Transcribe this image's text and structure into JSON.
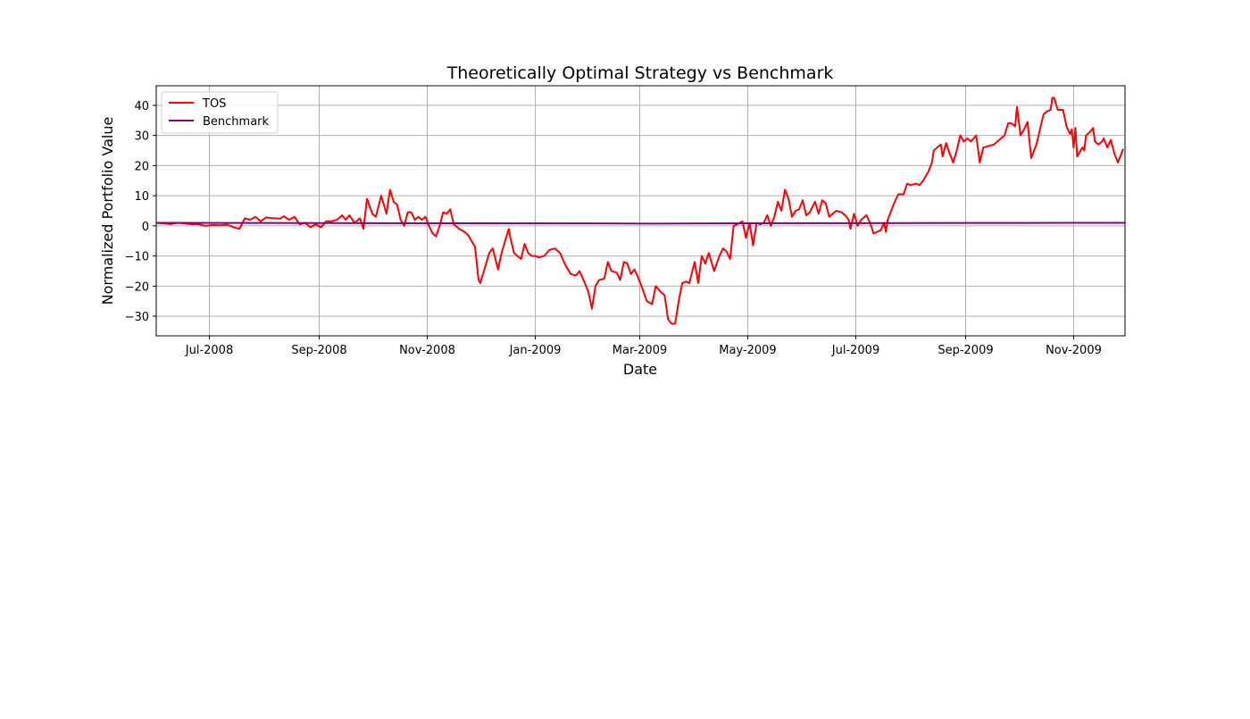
{
  "chart_data": {
    "type": "line",
    "title": "Theoretically Optimal Strategy vs Benchmark",
    "xlabel": "Date",
    "ylabel": "Normalized Portfolio Value",
    "x_range": [
      "2008-06-01",
      "2009-11-30"
    ],
    "ylim": [
      -36.5,
      46.5
    ],
    "x_ticks": [
      {
        "date": "2008-07-01",
        "label": "Jul-2008"
      },
      {
        "date": "2008-09-01",
        "label": "Sep-2008"
      },
      {
        "date": "2008-11-01",
        "label": "Nov-2008"
      },
      {
        "date": "2009-01-01",
        "label": "Jan-2009"
      },
      {
        "date": "2009-03-01",
        "label": "Mar-2009"
      },
      {
        "date": "2009-05-01",
        "label": "May-2009"
      },
      {
        "date": "2009-07-01",
        "label": "Jul-2009"
      },
      {
        "date": "2009-09-01",
        "label": "Sep-2009"
      },
      {
        "date": "2009-11-01",
        "label": "Nov-2009"
      }
    ],
    "y_ticks": [
      -30,
      -20,
      -10,
      0,
      10,
      20,
      30,
      40
    ],
    "grid": true,
    "legend_position": "top-left",
    "series": [
      {
        "name": "TOS",
        "color": "#ff0000",
        "points": [
          [
            "2008-06-01",
            1.0
          ],
          [
            "2008-06-05",
            0.8
          ],
          [
            "2008-06-09",
            0.6
          ],
          [
            "2008-06-13",
            1.0
          ],
          [
            "2008-06-17",
            0.8
          ],
          [
            "2008-06-21",
            0.5
          ],
          [
            "2008-06-25",
            0.5
          ],
          [
            "2008-06-29",
            0.0
          ],
          [
            "2008-07-03",
            0.3
          ],
          [
            "2008-07-07",
            0.2
          ],
          [
            "2008-07-11",
            0.4
          ],
          [
            "2008-07-15",
            -0.5
          ],
          [
            "2008-07-18",
            -1.0
          ],
          [
            "2008-07-21",
            2.5
          ],
          [
            "2008-07-24",
            2.0
          ],
          [
            "2008-07-27",
            3.0
          ],
          [
            "2008-07-30",
            1.5
          ],
          [
            "2008-08-02",
            2.8
          ],
          [
            "2008-08-06",
            2.5
          ],
          [
            "2008-08-10",
            2.4
          ],
          [
            "2008-08-12",
            3.2
          ],
          [
            "2008-08-15",
            2.0
          ],
          [
            "2008-08-18",
            3.0
          ],
          [
            "2008-08-21",
            0.5
          ],
          [
            "2008-08-24",
            1.0
          ],
          [
            "2008-08-27",
            -0.5
          ],
          [
            "2008-08-30",
            0.5
          ],
          [
            "2008-09-02",
            -0.5
          ],
          [
            "2008-09-05",
            1.5
          ],
          [
            "2008-09-08",
            1.5
          ],
          [
            "2008-09-11",
            2.0
          ],
          [
            "2008-09-14",
            3.5
          ],
          [
            "2008-09-16",
            2.0
          ],
          [
            "2008-09-18",
            3.5
          ],
          [
            "2008-09-21",
            1.0
          ],
          [
            "2008-09-24",
            2.5
          ],
          [
            "2008-09-26",
            -1.0
          ],
          [
            "2008-09-28",
            9.0
          ],
          [
            "2008-10-01",
            4.0
          ],
          [
            "2008-10-03",
            3.0
          ],
          [
            "2008-10-06",
            10.0
          ],
          [
            "2008-10-09",
            4.0
          ],
          [
            "2008-10-11",
            12.0
          ],
          [
            "2008-10-13",
            8.0
          ],
          [
            "2008-10-15",
            7.0
          ],
          [
            "2008-10-17",
            2.0
          ],
          [
            "2008-10-19",
            0.0
          ],
          [
            "2008-10-21",
            4.5
          ],
          [
            "2008-10-23",
            4.5
          ],
          [
            "2008-10-25",
            2.0
          ],
          [
            "2008-10-27",
            3.0
          ],
          [
            "2008-10-29",
            2.0
          ],
          [
            "2008-10-31",
            3.0
          ],
          [
            "2008-11-02",
            0.0
          ],
          [
            "2008-11-04",
            -2.5
          ],
          [
            "2008-11-06",
            -3.5
          ],
          [
            "2008-11-08",
            0.0
          ],
          [
            "2008-11-10",
            4.5
          ],
          [
            "2008-11-12",
            4.0
          ],
          [
            "2008-11-14",
            5.5
          ],
          [
            "2008-11-16",
            0.5
          ],
          [
            "2008-11-19",
            -1.0
          ],
          [
            "2008-11-22",
            -2.0
          ],
          [
            "2008-11-24",
            -3.0
          ],
          [
            "2008-11-26",
            -5.0
          ],
          [
            "2008-11-28",
            -7.0
          ],
          [
            "2008-11-30",
            -18.0
          ],
          [
            "2008-12-01",
            -19.0
          ],
          [
            "2008-12-03",
            -15.0
          ],
          [
            "2008-12-06",
            -9.0
          ],
          [
            "2008-12-08",
            -7.5
          ],
          [
            "2008-12-11",
            -14.5
          ],
          [
            "2008-12-13",
            -9.0
          ],
          [
            "2008-12-15",
            -5.0
          ],
          [
            "2008-12-17",
            -1.0
          ],
          [
            "2008-12-18",
            -4.0
          ],
          [
            "2008-12-20",
            -9.0
          ],
          [
            "2008-12-22",
            -10.0
          ],
          [
            "2008-12-24",
            -11.0
          ],
          [
            "2008-12-26",
            -6.0
          ],
          [
            "2008-12-28",
            -9.0
          ],
          [
            "2008-12-30",
            -10.0
          ],
          [
            "2009-01-01",
            -10.0
          ],
          [
            "2009-01-03",
            -10.5
          ],
          [
            "2009-01-06",
            -10.0
          ],
          [
            "2009-01-09",
            -8.0
          ],
          [
            "2009-01-12",
            -7.5
          ],
          [
            "2009-01-15",
            -9.0
          ],
          [
            "2009-01-18",
            -13.0
          ],
          [
            "2009-01-21",
            -16.0
          ],
          [
            "2009-01-24",
            -16.5
          ],
          [
            "2009-01-26",
            -15.0
          ],
          [
            "2009-01-29",
            -19.0
          ],
          [
            "2009-01-31",
            -22.0
          ],
          [
            "2009-02-02",
            -27.5
          ],
          [
            "2009-02-04",
            -20.0
          ],
          [
            "2009-02-06",
            -18.0
          ],
          [
            "2009-02-09",
            -17.5
          ],
          [
            "2009-02-11",
            -12.0
          ],
          [
            "2009-02-13",
            -15.0
          ],
          [
            "2009-02-16",
            -15.5
          ],
          [
            "2009-02-18",
            -18.0
          ],
          [
            "2009-02-20",
            -12.0
          ],
          [
            "2009-02-22",
            -12.5
          ],
          [
            "2009-02-24",
            -16.0
          ],
          [
            "2009-02-26",
            -14.5
          ],
          [
            "2009-02-28",
            -17.0
          ],
          [
            "2009-03-02",
            -20.0
          ],
          [
            "2009-03-05",
            -25.0
          ],
          [
            "2009-03-08",
            -26.0
          ],
          [
            "2009-03-10",
            -20.0
          ],
          [
            "2009-03-13",
            -22.0
          ],
          [
            "2009-03-15",
            -23.0
          ],
          [
            "2009-03-17",
            -31.0
          ],
          [
            "2009-03-19",
            -32.5
          ],
          [
            "2009-03-21",
            -32.5
          ],
          [
            "2009-03-23",
            -25.0
          ],
          [
            "2009-03-25",
            -19.0
          ],
          [
            "2009-03-27",
            -18.5
          ],
          [
            "2009-03-29",
            -19.0
          ],
          [
            "2009-04-01",
            -12.0
          ],
          [
            "2009-04-03",
            -19.0
          ],
          [
            "2009-04-05",
            -10.0
          ],
          [
            "2009-04-07",
            -12.5
          ],
          [
            "2009-04-09",
            -9.0
          ],
          [
            "2009-04-12",
            -15.0
          ],
          [
            "2009-04-15",
            -10.0
          ],
          [
            "2009-04-17",
            -7.5
          ],
          [
            "2009-04-19",
            -8.5
          ],
          [
            "2009-04-21",
            -11.0
          ],
          [
            "2009-04-23",
            0.0
          ],
          [
            "2009-04-25",
            0.5
          ],
          [
            "2009-04-28",
            1.5
          ],
          [
            "2009-04-30",
            -4.0
          ],
          [
            "2009-05-02",
            1.0
          ],
          [
            "2009-05-04",
            -6.5
          ],
          [
            "2009-05-06",
            1.0
          ],
          [
            "2009-05-08",
            0.5
          ],
          [
            "2009-05-10",
            1.0
          ],
          [
            "2009-05-12",
            3.5
          ],
          [
            "2009-05-14",
            0.0
          ],
          [
            "2009-05-16",
            3.0
          ],
          [
            "2009-05-18",
            8.0
          ],
          [
            "2009-05-20",
            5.0
          ],
          [
            "2009-05-22",
            12.0
          ],
          [
            "2009-05-24",
            9.0
          ],
          [
            "2009-05-26",
            3.0
          ],
          [
            "2009-05-28",
            5.0
          ],
          [
            "2009-05-30",
            5.5
          ],
          [
            "2009-06-01",
            8.5
          ],
          [
            "2009-06-03",
            3.5
          ],
          [
            "2009-06-05",
            4.5
          ],
          [
            "2009-06-08",
            8.0
          ],
          [
            "2009-06-10",
            4.0
          ],
          [
            "2009-06-12",
            8.5
          ],
          [
            "2009-06-14",
            7.5
          ],
          [
            "2009-06-16",
            3.0
          ],
          [
            "2009-06-18",
            4.0
          ],
          [
            "2009-06-20",
            5.0
          ],
          [
            "2009-06-23",
            4.5
          ],
          [
            "2009-06-25",
            3.5
          ],
          [
            "2009-06-27",
            2.0
          ],
          [
            "2009-06-28",
            -1.0
          ],
          [
            "2009-06-30",
            4.0
          ],
          [
            "2009-07-02",
            0.0
          ],
          [
            "2009-07-04",
            2.0
          ],
          [
            "2009-07-07",
            3.5
          ],
          [
            "2009-07-09",
            1.0
          ],
          [
            "2009-07-11",
            -2.5
          ],
          [
            "2009-07-13",
            -2.0
          ],
          [
            "2009-07-15",
            -1.5
          ],
          [
            "2009-07-17",
            1.0
          ],
          [
            "2009-07-18",
            -2.0
          ],
          [
            "2009-07-19",
            2.0
          ],
          [
            "2009-07-21",
            5.0
          ],
          [
            "2009-07-23",
            8.0
          ],
          [
            "2009-07-25",
            10.5
          ],
          [
            "2009-07-28",
            10.5
          ],
          [
            "2009-07-30",
            14.0
          ],
          [
            "2009-08-01",
            13.5
          ],
          [
            "2009-08-04",
            14.0
          ],
          [
            "2009-08-06",
            13.5
          ],
          [
            "2009-08-08",
            15.0
          ],
          [
            "2009-08-11",
            18.0
          ],
          [
            "2009-08-13",
            21.0
          ],
          [
            "2009-08-14",
            25.0
          ],
          [
            "2009-08-16",
            26.0
          ],
          [
            "2009-08-18",
            27.0
          ],
          [
            "2009-08-19",
            23.0
          ],
          [
            "2009-08-21",
            27.5
          ],
          [
            "2009-08-23",
            24.0
          ],
          [
            "2009-08-25",
            21.0
          ],
          [
            "2009-08-27",
            25.0
          ],
          [
            "2009-08-29",
            30.0
          ],
          [
            "2009-08-31",
            28.0
          ],
          [
            "2009-09-02",
            29.0
          ],
          [
            "2009-09-04",
            28.0
          ],
          [
            "2009-09-07",
            30.0
          ],
          [
            "2009-09-09",
            21.0
          ],
          [
            "2009-09-11",
            26.0
          ],
          [
            "2009-09-14",
            26.5
          ],
          [
            "2009-09-17",
            27.0
          ],
          [
            "2009-09-19",
            28.0
          ],
          [
            "2009-09-21",
            29.0
          ],
          [
            "2009-09-23",
            30.0
          ],
          [
            "2009-09-25",
            34.0
          ],
          [
            "2009-09-27",
            34.0
          ],
          [
            "2009-09-29",
            33.0
          ],
          [
            "2009-09-30",
            39.5
          ],
          [
            "2009-10-02",
            30.0
          ],
          [
            "2009-10-04",
            32.0
          ],
          [
            "2009-10-06",
            34.5
          ],
          [
            "2009-10-08",
            22.5
          ],
          [
            "2009-10-11",
            27.0
          ],
          [
            "2009-10-13",
            32.0
          ],
          [
            "2009-10-15",
            37.0
          ],
          [
            "2009-10-17",
            38.0
          ],
          [
            "2009-10-19",
            38.5
          ],
          [
            "2009-10-20",
            42.5
          ],
          [
            "2009-10-21",
            42.5
          ],
          [
            "2009-10-23",
            38.5
          ],
          [
            "2009-10-26",
            38.5
          ],
          [
            "2009-10-28",
            33.0
          ],
          [
            "2009-10-30",
            30.5
          ],
          [
            "2009-10-31",
            32.0
          ],
          [
            "2009-11-01",
            26.0
          ],
          [
            "2009-11-02",
            32.5
          ],
          [
            "2009-11-03",
            23.0
          ],
          [
            "2009-11-05",
            25.0
          ],
          [
            "2009-11-06",
            26.0
          ],
          [
            "2009-11-07",
            25.0
          ],
          [
            "2009-11-08",
            30.0
          ],
          [
            "2009-11-10",
            31.0
          ],
          [
            "2009-11-12",
            32.5
          ],
          [
            "2009-11-13",
            28.0
          ],
          [
            "2009-11-15",
            27.0
          ],
          [
            "2009-11-17",
            28.0
          ],
          [
            "2009-11-18",
            29.0
          ],
          [
            "2009-11-20",
            26.0
          ],
          [
            "2009-11-22",
            28.5
          ],
          [
            "2009-11-24",
            24.0
          ],
          [
            "2009-11-26",
            21.0
          ],
          [
            "2009-11-29",
            25.5
          ]
        ]
      },
      {
        "name": "Benchmark",
        "color": "#800080",
        "points": [
          [
            "2008-06-01",
            1.0
          ],
          [
            "2008-08-01",
            0.95
          ],
          [
            "2008-10-01",
            0.9
          ],
          [
            "2008-12-01",
            0.85
          ],
          [
            "2009-02-01",
            0.8
          ],
          [
            "2009-03-10",
            0.75
          ],
          [
            "2009-05-01",
            0.85
          ],
          [
            "2009-07-01",
            0.9
          ],
          [
            "2009-09-01",
            0.95
          ],
          [
            "2009-11-01",
            1.0
          ],
          [
            "2009-11-30",
            1.0
          ]
        ]
      }
    ]
  }
}
